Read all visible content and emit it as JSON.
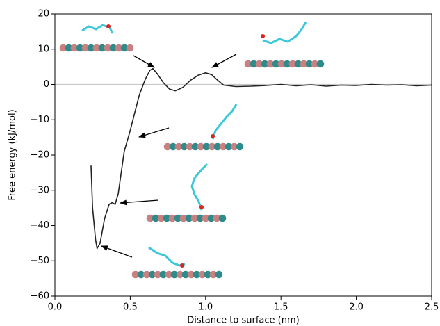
{
  "chart_data": {
    "type": "line",
    "x_label": "Distance to surface (nm)",
    "y_label": "Free energy (kJ/mol)",
    "x": [
      0.24,
      0.25,
      0.27,
      0.28,
      0.3,
      0.33,
      0.36,
      0.38,
      0.4,
      0.42,
      0.44,
      0.46,
      0.48,
      0.5,
      0.53,
      0.56,
      0.6,
      0.63,
      0.65,
      0.68,
      0.72,
      0.76,
      0.8,
      0.85,
      0.9,
      0.95,
      1.0,
      1.04,
      1.08,
      1.12,
      1.2,
      1.3,
      1.4,
      1.5,
      1.6,
      1.7,
      1.8,
      1.9,
      2.0,
      2.1,
      2.2,
      2.3,
      2.4,
      2.5
    ],
    "values": [
      -23,
      -35,
      -44,
      -46.5,
      -45,
      -38,
      -34,
      -33.5,
      -34,
      -31,
      -25,
      -19,
      -16,
      -13,
      -8,
      -3,
      1.5,
      4,
      4.5,
      3,
      0.5,
      -1.3,
      -1.8,
      -0.8,
      1.2,
      2.6,
      3.3,
      2.8,
      1.2,
      -0.2,
      -0.6,
      -0.5,
      -0.3,
      0,
      -0.4,
      -0.1,
      -0.5,
      -0.2,
      -0.3,
      0,
      -0.2,
      -0.1,
      -0.4,
      -0.2
    ],
    "color": "#222222",
    "reference_line": 0,
    "xlim": [
      0,
      2.5
    ],
    "xticks": [
      {
        "value": 0,
        "label": "0.0"
      },
      0.5,
      {
        "value": 1,
        "label": "1.0"
      },
      1.5,
      {
        "value": 2,
        "label": "2.0"
      },
      2.5
    ],
    "ylim": [
      -60,
      20
    ],
    "yticks": [
      {
        "value": -60,
        "label": "−60"
      },
      {
        "value": -50,
        "label": "−50"
      },
      {
        "value": -40,
        "label": "−40"
      },
      {
        "value": -30,
        "label": "−30"
      },
      {
        "value": -20,
        "label": "−20"
      },
      {
        "value": -10,
        "label": "−10"
      },
      0,
      10,
      20
    ]
  }
}
